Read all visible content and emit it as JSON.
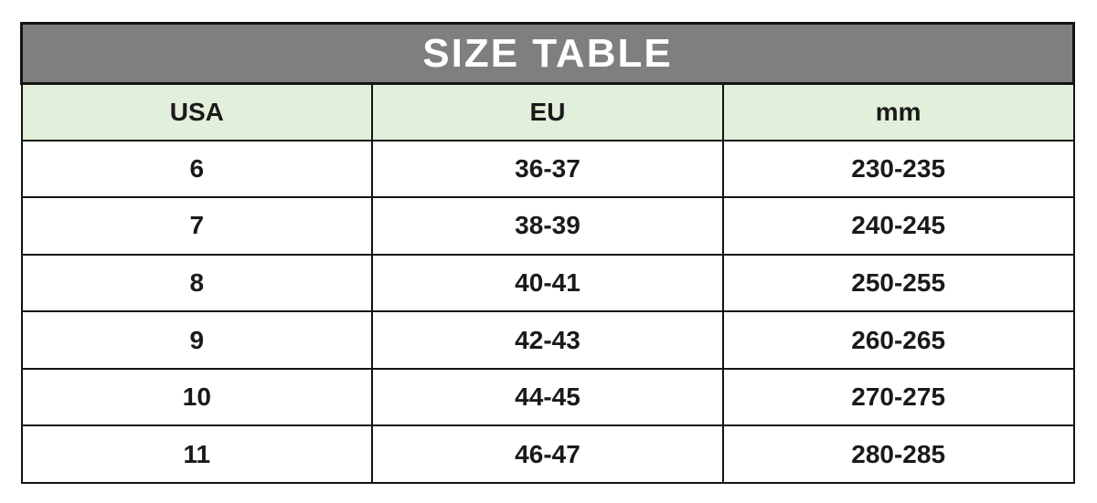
{
  "title": "SIZE TABLE",
  "colors": {
    "banner_bg": "#7f7f7f",
    "banner_text": "#ffffff",
    "header_bg": "#e2efda",
    "row_bg": "#ffffff",
    "border": "#141414",
    "cell_text": "#1a1a1a",
    "page_bg": "#ffffff"
  },
  "chart_data": {
    "type": "table",
    "title": "SIZE TABLE",
    "columns": [
      "USA",
      "EU",
      "mm"
    ],
    "rows": [
      [
        "6",
        "36-37",
        "230-235"
      ],
      [
        "7",
        "38-39",
        "240-245"
      ],
      [
        "8",
        "40-41",
        "250-255"
      ],
      [
        "9",
        "42-43",
        "260-265"
      ],
      [
        "10",
        "44-45",
        "270-275"
      ],
      [
        "11",
        "46-47",
        "280-285"
      ]
    ]
  }
}
